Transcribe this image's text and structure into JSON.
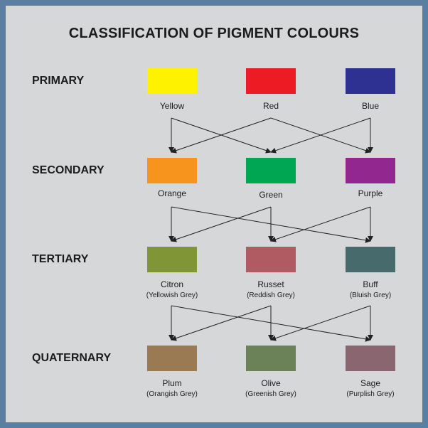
{
  "title": "CLASSIFICATION OF PIGMENT COLOURS",
  "levels": {
    "primary": "PRIMARY",
    "secondary": "SECONDARY",
    "tertiary": "TERTIARY",
    "quaternary": "QUATERNARY"
  },
  "primary": [
    {
      "name": "Yellow",
      "color": "#fff200"
    },
    {
      "name": "Red",
      "color": "#ed1c24"
    },
    {
      "name": "Blue",
      "color": "#2e3192"
    }
  ],
  "secondary": [
    {
      "name": "Orange",
      "color": "#f7941d"
    },
    {
      "name": "Green",
      "color": "#00a651"
    },
    {
      "name": "Purple",
      "color": "#92278f"
    }
  ],
  "tertiary": [
    {
      "name": "Citron",
      "sub": "(Yellowish Grey)",
      "color": "#7f9536"
    },
    {
      "name": "Russet",
      "sub": "(Reddish Grey)",
      "color": "#b05a62"
    },
    {
      "name": "Buff",
      "sub": "(Bluish Grey)",
      "color": "#476a6d"
    }
  ],
  "quaternary": [
    {
      "name": "Plum",
      "sub": "(Orangish Grey)",
      "color": "#9a7a52"
    },
    {
      "name": "Olive",
      "sub": "(Greenish Grey)",
      "color": "#6b8158"
    },
    {
      "name": "Sage",
      "sub": "(Purplish Grey)",
      "color": "#8a6670"
    }
  ],
  "colors": {
    "frame": "#5b7fa1",
    "background": "#d6d7d9",
    "arrow": "#222222"
  }
}
